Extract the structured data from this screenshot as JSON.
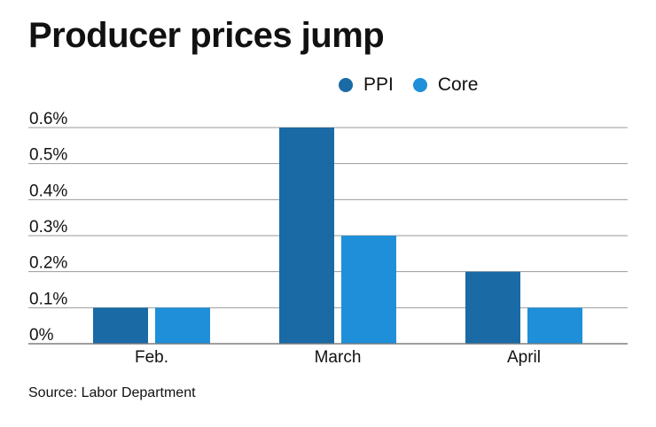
{
  "chart_data": {
    "type": "bar",
    "title": "Producer prices jump",
    "categories": [
      "Feb.",
      "March",
      "April"
    ],
    "series": [
      {
        "name": "PPI",
        "color": "#1a6aa5",
        "values": [
          0.1,
          0.6,
          0.2
        ]
      },
      {
        "name": "Core",
        "color": "#1e8fd8",
        "values": [
          0.1,
          0.3,
          0.1
        ]
      }
    ],
    "yticks": [
      {
        "value": 0.0,
        "label": "0%"
      },
      {
        "value": 0.1,
        "label": "0.1%"
      },
      {
        "value": 0.2,
        "label": "0.2%"
      },
      {
        "value": 0.3,
        "label": "0.3%"
      },
      {
        "value": 0.4,
        "label": "0.4%"
      },
      {
        "value": 0.5,
        "label": "0.5%"
      },
      {
        "value": 0.6,
        "label": "0.6%"
      }
    ],
    "ylim": [
      0,
      0.6
    ],
    "grid": true,
    "legend_position": "top-right",
    "xlabel": "",
    "ylabel": "",
    "source": "Source: Labor Department"
  }
}
